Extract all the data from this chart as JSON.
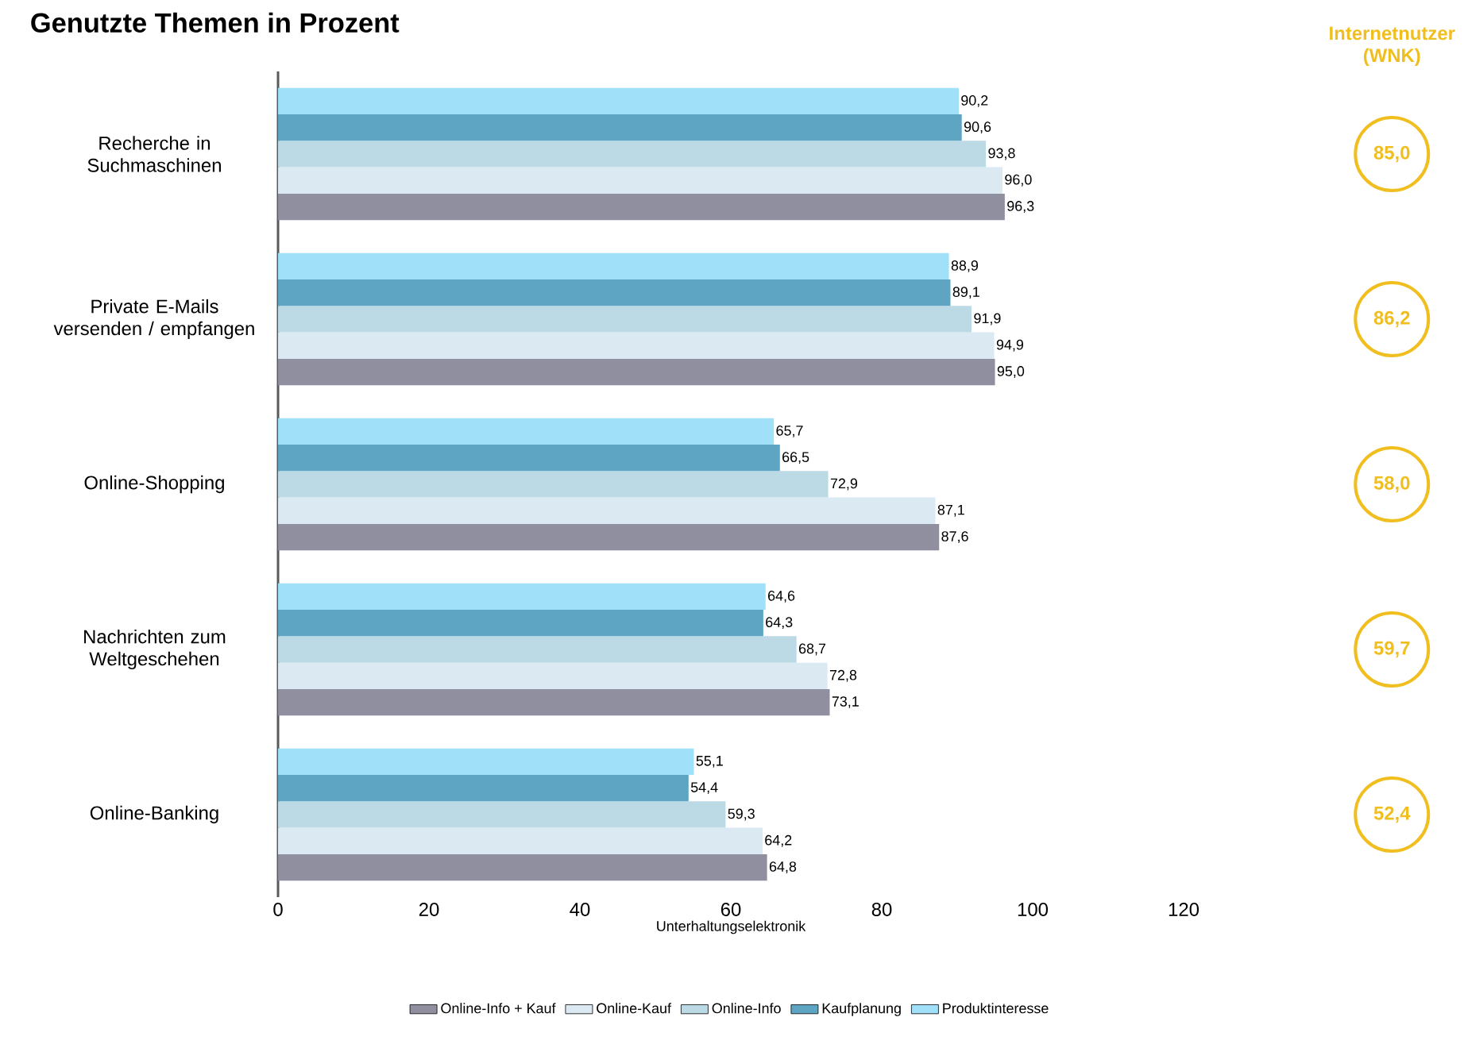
{
  "chart_data": {
    "type": "bar",
    "orientation": "horizontal",
    "title": "Genutzte Themen in Prozent",
    "xlabel": "Unterhaltungselektronik",
    "categories": [
      "Recherche in Suchmaschinen",
      "Private E-Mails versenden / empfangen",
      "Online-Shopping",
      "Nachrichten zum Weltgeschehen",
      "Online-Banking"
    ],
    "series": [
      {
        "name": "Online-Info + Kauf",
        "color": "#8f8f9f",
        "values": [
          96.3,
          95.0,
          87.6,
          73.1,
          64.8
        ],
        "value_labels": [
          "96,3",
          "95,0",
          "87,6",
          "73,1",
          "64,8"
        ]
      },
      {
        "name": "Online-Kauf",
        "color": "#dbe9f2",
        "values": [
          96.0,
          94.9,
          87.1,
          72.8,
          64.2
        ],
        "value_labels": [
          "96,0",
          "94,9",
          "87,1",
          "72,8",
          "64,2"
        ]
      },
      {
        "name": "Online-Info",
        "color": "#bcd9e6",
        "values": [
          93.8,
          91.9,
          72.9,
          68.7,
          59.3
        ],
        "value_labels": [
          "93,8",
          "91,9",
          "72,9",
          "68,7",
          "59,3"
        ]
      },
      {
        "name": "Kaufplanung",
        "color": "#5ea5c4",
        "values": [
          90.6,
          89.1,
          66.5,
          64.3,
          54.4
        ],
        "value_labels": [
          "90,6",
          "89,1",
          "66,5",
          "64,3",
          "54,4"
        ]
      },
      {
        "name": "Produktinteresse",
        "color": "#a0e0f8",
        "values": [
          90.2,
          88.9,
          65.7,
          64.6,
          55.1
        ],
        "value_labels": [
          "90,2",
          "88,9",
          "65,7",
          "64,6",
          "55,1"
        ]
      }
    ],
    "xlim": [
      0,
      120
    ],
    "xticks": [
      0,
      20,
      40,
      60,
      80,
      100,
      120
    ],
    "grid": false,
    "legend": "bottom",
    "annotations": [
      "Internetnutzer (WNK)",
      "85,0",
      "86,2",
      "58,0",
      "59,7",
      "52,4"
    ]
  }
}
